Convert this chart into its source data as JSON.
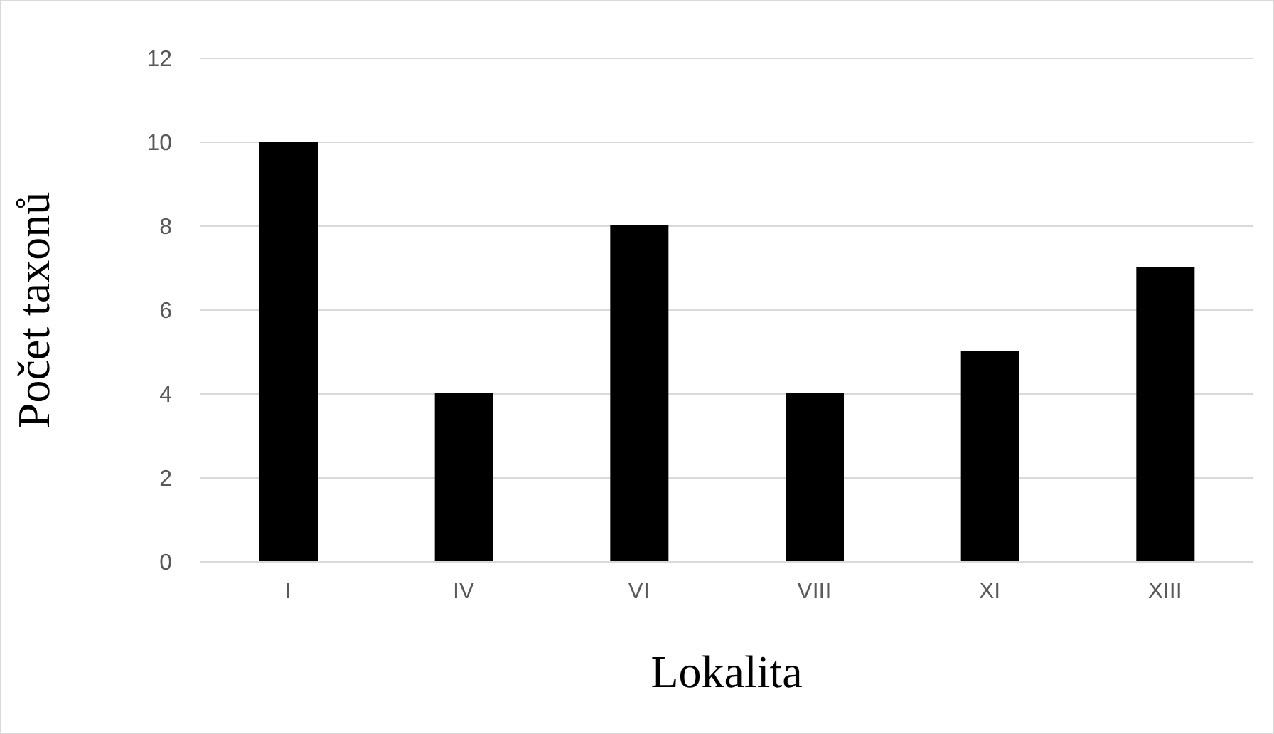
{
  "chart_data": {
    "type": "bar",
    "xlabel": "Lokalita",
    "ylabel": "Počet taxonů",
    "categories": [
      "I",
      "IV",
      "VI",
      "VIII",
      "XI",
      "XIII"
    ],
    "values": [
      10,
      4,
      8,
      4,
      5,
      7
    ],
    "color": "#000000",
    "ylim": [
      0,
      12
    ],
    "yticks": [
      0,
      2,
      4,
      6,
      8,
      10,
      12
    ],
    "grid": "y",
    "legend": false
  }
}
